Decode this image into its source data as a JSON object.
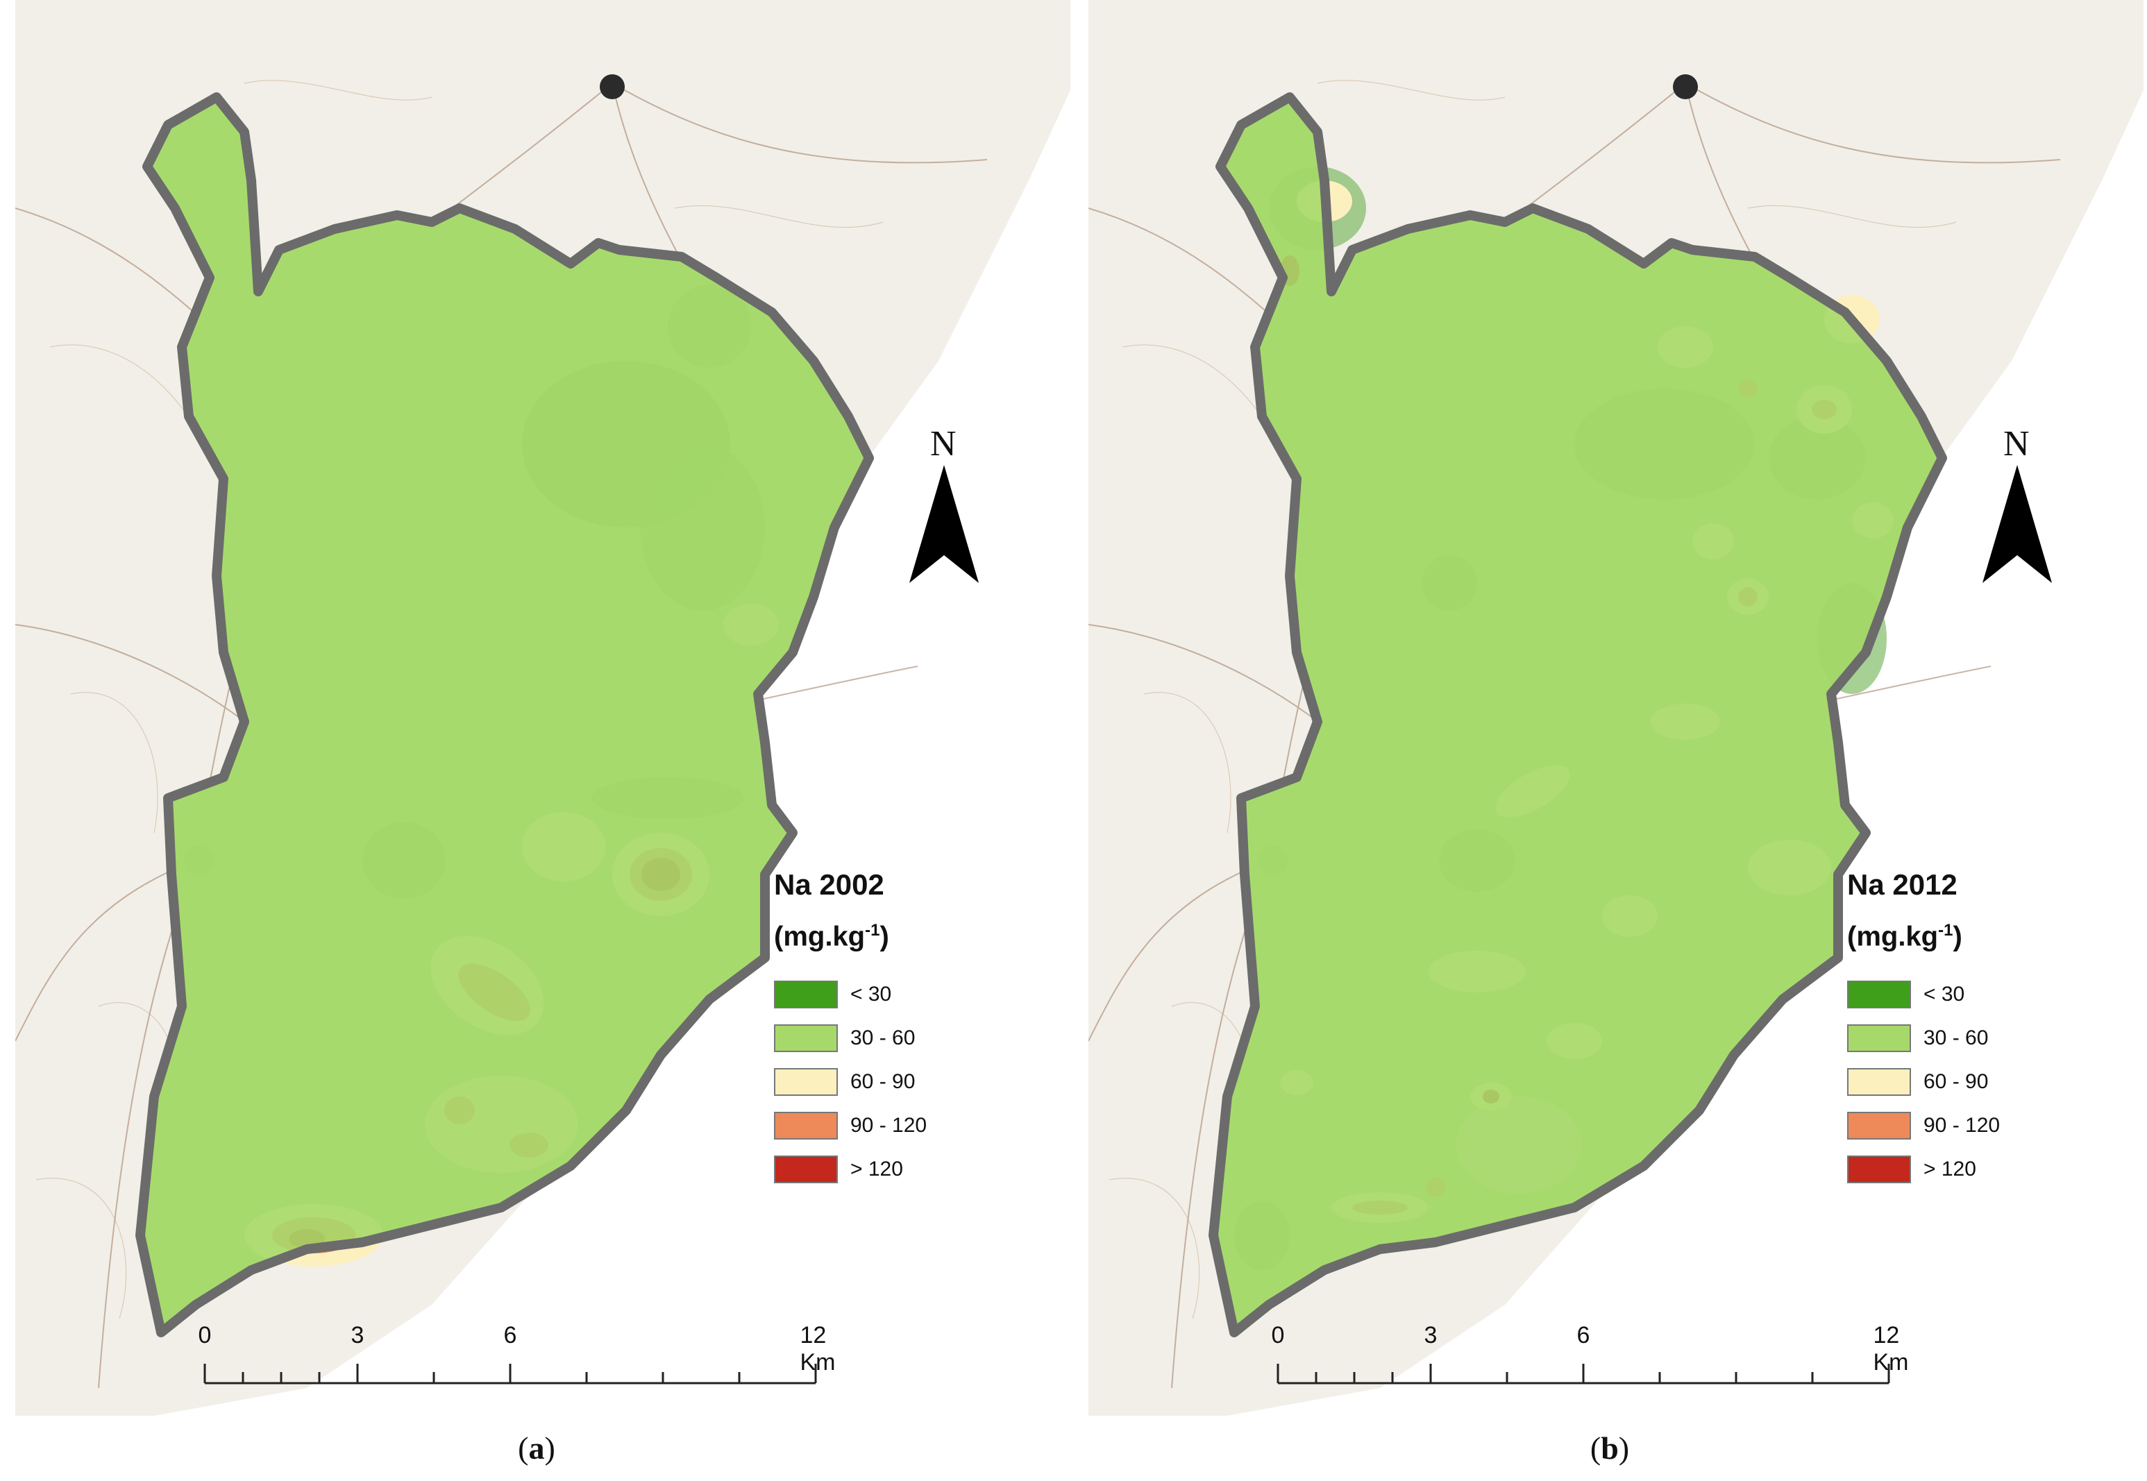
{
  "panels": [
    {
      "id": "a",
      "legend_title": "Na 2002",
      "unit_prefix": "(mg.kg",
      "unit_exp": "-1",
      "unit_suffix": ")",
      "caption_open": "(",
      "caption_letter": "a",
      "caption_close": ")"
    },
    {
      "id": "b",
      "legend_title": "Na 2012",
      "unit_prefix": "(mg.kg",
      "unit_exp": "-1",
      "unit_suffix": ")",
      "caption_open": "(",
      "caption_letter": "b",
      "caption_close": ")"
    }
  ],
  "north_label": "N",
  "legend_classes": [
    {
      "label": "< 30",
      "color": "#3f9f1a"
    },
    {
      "label": "30 - 60",
      "color": "#a6d96a"
    },
    {
      "label": "60 - 90",
      "color": "#fdf0bf"
    },
    {
      "label": "90 - 120",
      "color": "#ee8a5a"
    },
    {
      "label": "> 120",
      "color": "#c4271b"
    }
  ],
  "scale": {
    "labels": [
      "0",
      "3",
      "6",
      "12 Km"
    ],
    "km_values": [
      0,
      3,
      6,
      12
    ]
  },
  "colors": {
    "boundary": "#6b6b6b",
    "basemap": "#f1efe8",
    "basemap_lines": "#8a6a5a",
    "area_fill": "#a6d96a",
    "dark_green": "#6db04f"
  }
}
